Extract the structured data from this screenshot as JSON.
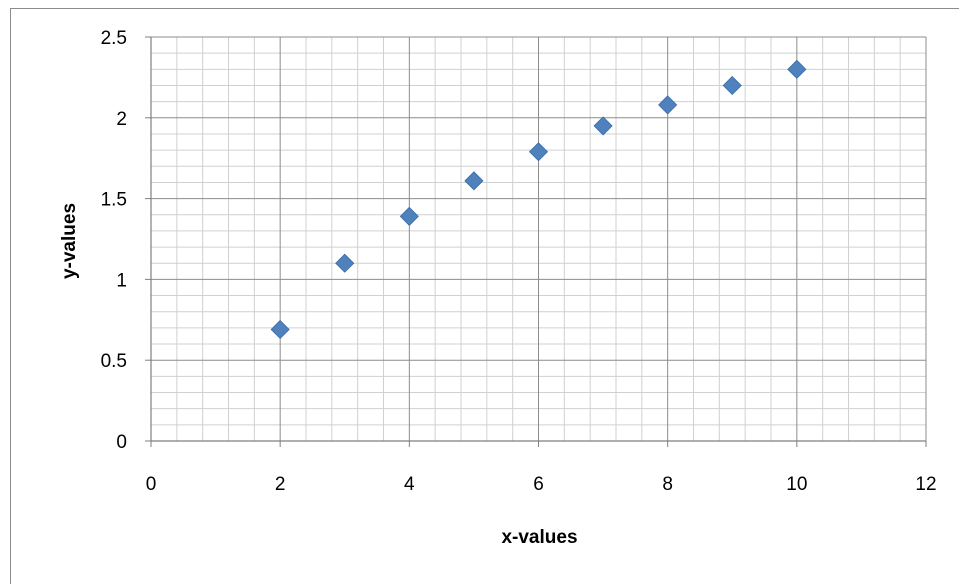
{
  "chart_data": {
    "type": "scatter",
    "title": "",
    "xlabel": "x-values",
    "ylabel": "y-values",
    "xlim": [
      0,
      12
    ],
    "ylim": [
      0,
      2.5
    ],
    "x_ticks": [
      0,
      2,
      4,
      6,
      8,
      10,
      12
    ],
    "y_ticks": [
      0,
      0.5,
      1,
      1.5,
      2,
      2.5
    ],
    "x_tick_labels": [
      "0",
      "2",
      "4",
      "6",
      "8",
      "10",
      "12"
    ],
    "y_tick_labels": [
      "0",
      "0.5",
      "1",
      "1.5",
      "2",
      "2.5"
    ],
    "grid": true,
    "legend": "none",
    "marker": "diamond",
    "series": [
      {
        "color": "#4F81BD",
        "x": [
          2,
          3,
          4,
          5,
          6,
          7,
          8,
          9,
          10
        ],
        "y": [
          0.69,
          1.1,
          1.39,
          1.61,
          1.79,
          1.95,
          2.08,
          2.2,
          2.3
        ]
      }
    ]
  }
}
